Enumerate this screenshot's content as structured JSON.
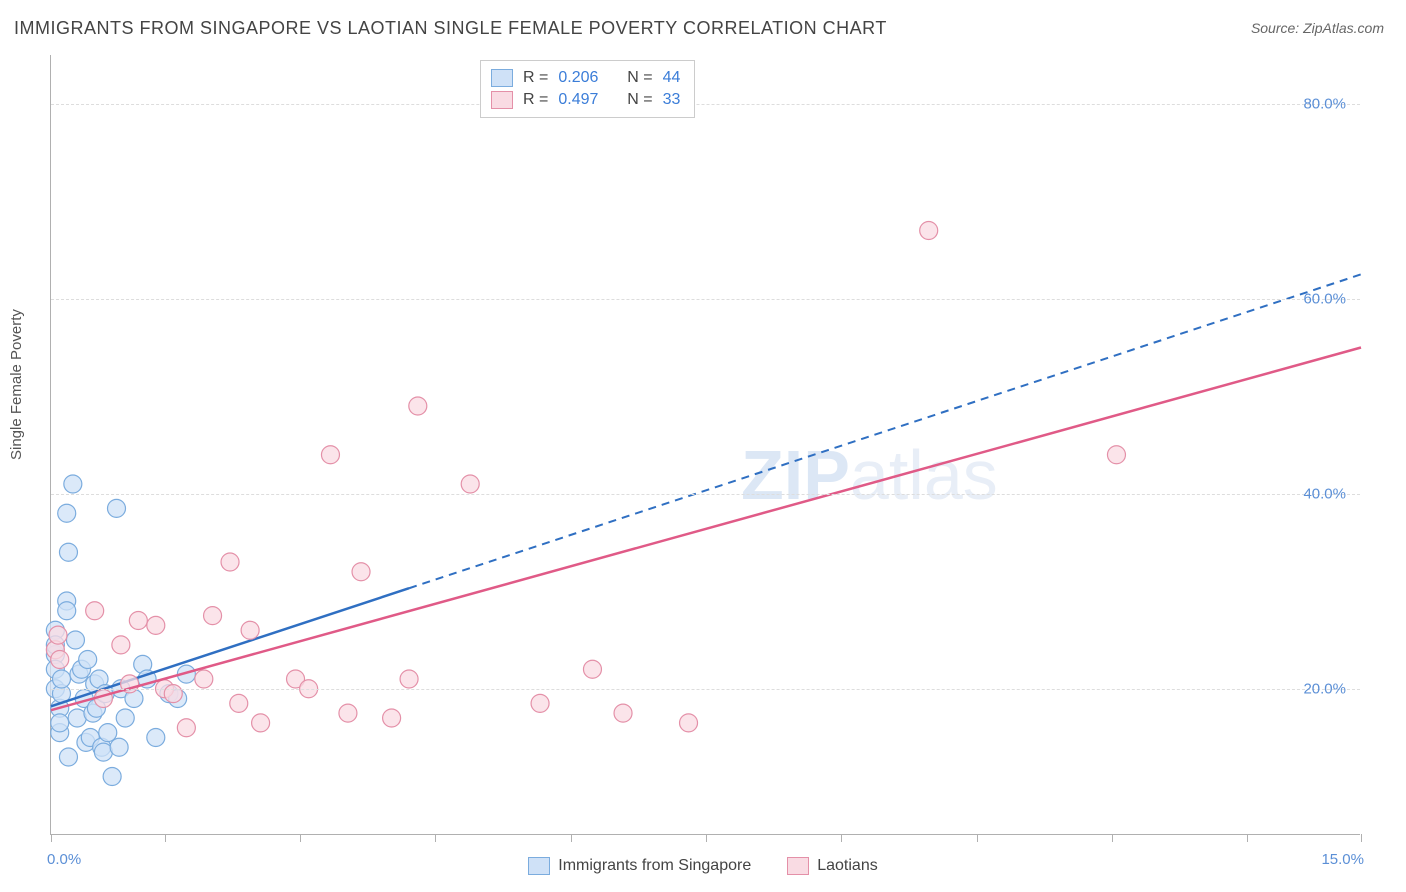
{
  "title": "IMMIGRANTS FROM SINGAPORE VS LAOTIAN SINGLE FEMALE POVERTY CORRELATION CHART",
  "source": "Source: ZipAtlas.com",
  "ylabel": "Single Female Poverty",
  "watermark_bold": "ZIP",
  "watermark_rest": "atlas",
  "chart": {
    "type": "scatter+regression",
    "xlim": [
      0,
      15
    ],
    "ylim": [
      5,
      85
    ],
    "x_tick_positions": [
      0,
      1.3,
      2.85,
      4.4,
      5.95,
      7.5,
      9.05,
      10.6,
      12.15,
      13.7,
      15
    ],
    "x_tick_labels_shown": {
      "0": "0.0%",
      "15": "15.0%"
    },
    "y_gridlines": [
      20,
      40,
      60,
      80
    ],
    "y_tick_labels": {
      "20": "20.0%",
      "40": "40.0%",
      "60": "60.0%",
      "80": "80.0%"
    },
    "background_color": "#ffffff",
    "grid_color": "#dddddd",
    "axis_color": "#b0b0b0",
    "label_color": "#5b8fd6",
    "title_color": "#444444",
    "title_fontsize": 18,
    "label_fontsize": 15,
    "marker_radius": 9,
    "marker_stroke_width": 1.2,
    "series": [
      {
        "name": "Immigrants from Singapore",
        "fill": "#cfe1f7",
        "stroke": "#7bacde",
        "line_color": "#2f6fc2",
        "line_dash_after_x": 4.1,
        "R": "0.206",
        "N": "44",
        "regression": {
          "x1": 0,
          "y1": 18.2,
          "x2": 15,
          "y2": 62.5
        },
        "points": [
          [
            0.05,
            23.5
          ],
          [
            0.05,
            26.0
          ],
          [
            0.05,
            20.0
          ],
          [
            0.05,
            24.5
          ],
          [
            0.05,
            22.0
          ],
          [
            0.1,
            18.0
          ],
          [
            0.1,
            15.5
          ],
          [
            0.1,
            16.5
          ],
          [
            0.12,
            19.5
          ],
          [
            0.12,
            21.0
          ],
          [
            0.18,
            38.0
          ],
          [
            0.18,
            29.0
          ],
          [
            0.18,
            28.0
          ],
          [
            0.2,
            34.0
          ],
          [
            0.2,
            13.0
          ],
          [
            0.25,
            41.0
          ],
          [
            0.28,
            25.0
          ],
          [
            0.3,
            17.0
          ],
          [
            0.32,
            21.5
          ],
          [
            0.35,
            22.0
          ],
          [
            0.38,
            19.0
          ],
          [
            0.4,
            14.5
          ],
          [
            0.42,
            23.0
          ],
          [
            0.45,
            15.0
          ],
          [
            0.48,
            17.5
          ],
          [
            0.5,
            20.5
          ],
          [
            0.52,
            18.0
          ],
          [
            0.55,
            21.0
          ],
          [
            0.58,
            14.0
          ],
          [
            0.6,
            13.5
          ],
          [
            0.62,
            19.5
          ],
          [
            0.65,
            15.5
          ],
          [
            0.7,
            11.0
          ],
          [
            0.75,
            38.5
          ],
          [
            0.78,
            14.0
          ],
          [
            0.8,
            20.0
          ],
          [
            0.85,
            17.0
          ],
          [
            0.95,
            19.0
          ],
          [
            1.05,
            22.5
          ],
          [
            1.1,
            21.0
          ],
          [
            1.2,
            15.0
          ],
          [
            1.35,
            19.5
          ],
          [
            1.45,
            19.0
          ],
          [
            1.55,
            21.5
          ]
        ]
      },
      {
        "name": "Laotians",
        "fill": "#f9dbe3",
        "stroke": "#e490a8",
        "line_color": "#e05a87",
        "line_dash_after_x": 15,
        "R": "0.497",
        "N": "33",
        "regression": {
          "x1": 0,
          "y1": 17.8,
          "x2": 15,
          "y2": 55.0
        },
        "points": [
          [
            0.05,
            24.0
          ],
          [
            0.08,
            25.5
          ],
          [
            0.1,
            23.0
          ],
          [
            0.5,
            28.0
          ],
          [
            0.6,
            19.0
          ],
          [
            0.8,
            24.5
          ],
          [
            0.9,
            20.5
          ],
          [
            1.0,
            27.0
          ],
          [
            1.2,
            26.5
          ],
          [
            1.3,
            20.0
          ],
          [
            1.4,
            19.5
          ],
          [
            1.55,
            16.0
          ],
          [
            1.75,
            21.0
          ],
          [
            1.85,
            27.5
          ],
          [
            2.05,
            33.0
          ],
          [
            2.15,
            18.5
          ],
          [
            2.28,
            26.0
          ],
          [
            2.4,
            16.5
          ],
          [
            2.8,
            21.0
          ],
          [
            2.95,
            20.0
          ],
          [
            3.2,
            44.0
          ],
          [
            3.4,
            17.5
          ],
          [
            3.55,
            32.0
          ],
          [
            3.9,
            17.0
          ],
          [
            4.1,
            21.0
          ],
          [
            4.2,
            49.0
          ],
          [
            4.8,
            41.0
          ],
          [
            5.6,
            18.5
          ],
          [
            6.2,
            22.0
          ],
          [
            6.55,
            17.5
          ],
          [
            7.3,
            16.5
          ],
          [
            10.05,
            67.0
          ],
          [
            12.2,
            44.0
          ]
        ]
      }
    ]
  },
  "stats_legend": {
    "rows": [
      {
        "swatch_fill": "#cfe1f7",
        "swatch_stroke": "#7bacde",
        "R_label": "R =",
        "R_val": "0.206",
        "N_label": "N =",
        "N_val": "44"
      },
      {
        "swatch_fill": "#f9dbe3",
        "swatch_stroke": "#e490a8",
        "R_label": "R =",
        "R_val": "0.497",
        "N_label": "N =",
        "N_val": "33"
      }
    ]
  },
  "bottom_legend": {
    "items": [
      {
        "swatch_fill": "#cfe1f7",
        "swatch_stroke": "#7bacde",
        "label": "Immigrants from Singapore"
      },
      {
        "swatch_fill": "#f9dbe3",
        "swatch_stroke": "#e490a8",
        "label": "Laotians"
      }
    ]
  }
}
